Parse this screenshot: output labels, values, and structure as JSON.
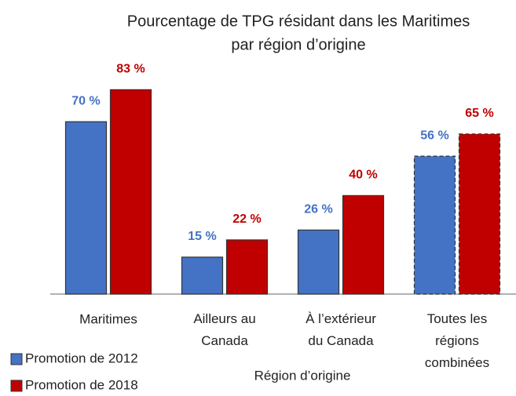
{
  "chart_data": {
    "type": "bar",
    "title": [
      "Pourcentage de TPG résidant dans les Maritimes",
      "par région d’origine"
    ],
    "x_label": "Région d’origine",
    "categories": [
      "Maritimes",
      "Ailleurs au\nCanada",
      "À l’extérieur\ndu Canada",
      "Toutes les\nrégions\ncombinées"
    ],
    "series": [
      {
        "name": "Promotion de 2012",
        "color": "#4472c4",
        "values": [
          70,
          15,
          26,
          56
        ],
        "value_labels": [
          "70 %",
          "15 %",
          "26 %",
          "56 %"
        ]
      },
      {
        "name": "Promotion de 2018",
        "color": "#c00000",
        "values": [
          83,
          22,
          40,
          65
        ],
        "value_labels": [
          "83 %",
          "22 %",
          "40 %",
          "65 %"
        ]
      }
    ],
    "ylim": [
      0,
      100
    ],
    "dashed_categories": [
      3
    ],
    "legend": "bottom-left"
  }
}
